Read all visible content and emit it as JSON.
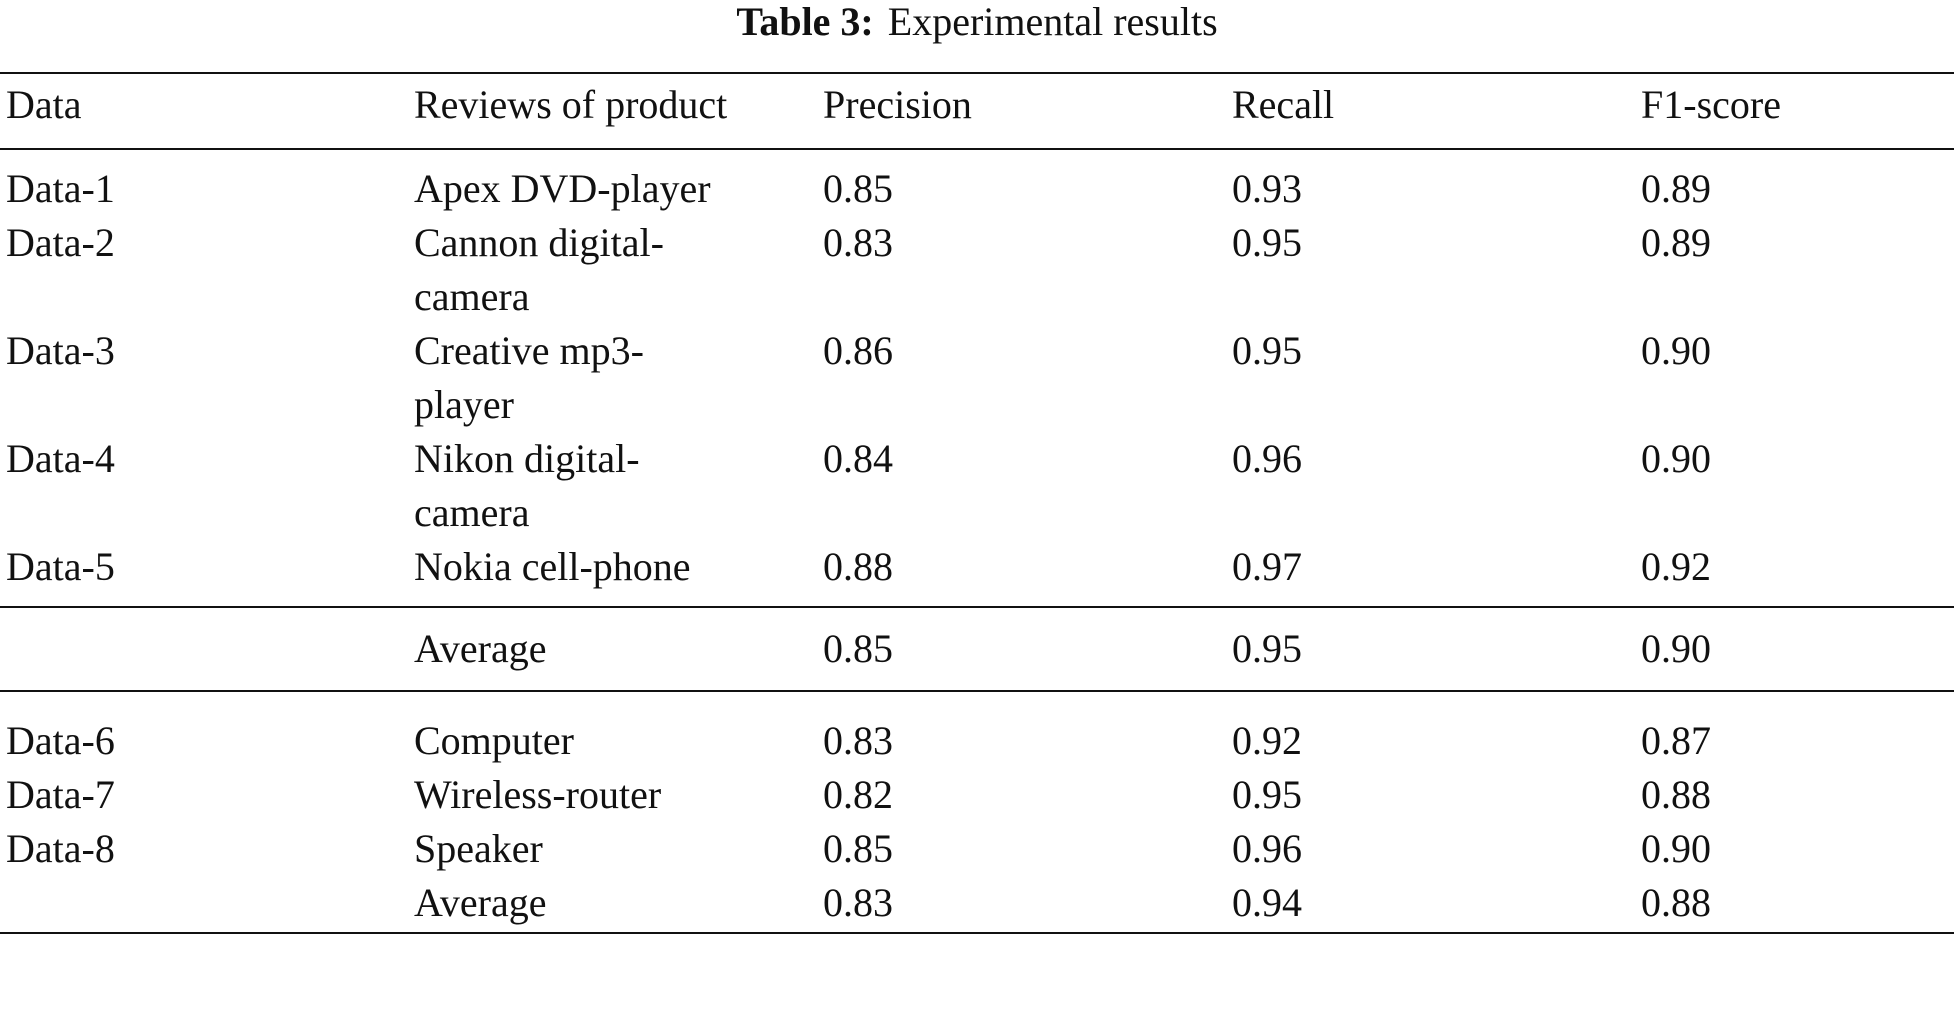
{
  "caption": {
    "label": "Table 3:",
    "title": "Experimental results"
  },
  "table": {
    "columns": [
      "Data",
      "Reviews of product",
      "Precision",
      "Recall",
      "F1-score"
    ],
    "group1": [
      {
        "data": "Data-1",
        "product": "Apex DVD-player",
        "precision": "0.85",
        "recall": "0.93",
        "f1": "0.89"
      },
      {
        "data": "Data-2",
        "product": "Cannon digital-camera",
        "precision": "0.83",
        "recall": "0.95",
        "f1": "0.89"
      },
      {
        "data": "Data-3",
        "product": "Creative mp3-player",
        "precision": "0.86",
        "recall": "0.95",
        "f1": "0.90"
      },
      {
        "data": "Data-4",
        "product": "Nikon digital-camera",
        "precision": "0.84",
        "recall": "0.96",
        "f1": "0.90"
      },
      {
        "data": "Data-5",
        "product": "Nokia cell-phone",
        "precision": "0.88",
        "recall": "0.97",
        "f1": "0.92"
      }
    ],
    "average1": {
      "data": "",
      "product": "Average",
      "precision": "0.85",
      "recall": "0.95",
      "f1": "0.90"
    },
    "group2": [
      {
        "data": "Data-6",
        "product": "Computer",
        "precision": "0.83",
        "recall": "0.92",
        "f1": "0.87"
      },
      {
        "data": "Data-7",
        "product": "Wireless-router",
        "precision": "0.82",
        "recall": "0.95",
        "f1": "0.88"
      },
      {
        "data": "Data-8",
        "product": "Speaker",
        "precision": "0.85",
        "recall": "0.96",
        "f1": "0.90"
      }
    ],
    "average2": {
      "data": "",
      "product": "Average",
      "precision": "0.83",
      "recall": "0.94",
      "f1": "0.88"
    }
  }
}
